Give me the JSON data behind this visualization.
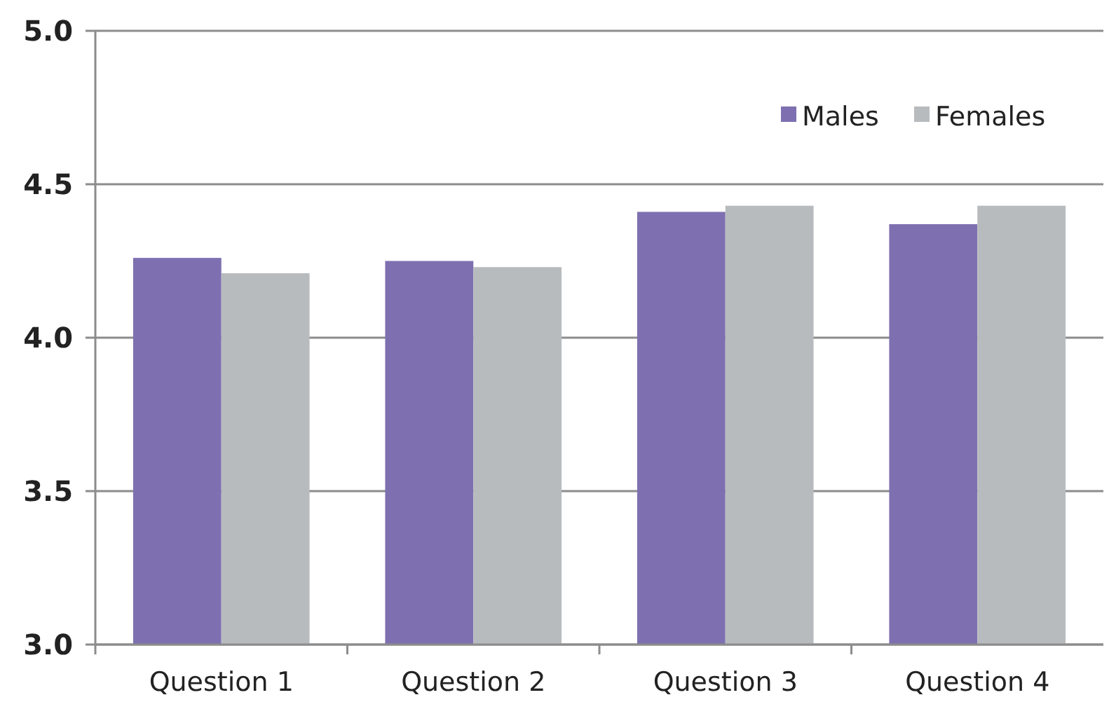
{
  "chart_data": {
    "type": "bar",
    "categories": [
      "Question 1",
      "Question 2",
      "Question 3",
      "Question 4"
    ],
    "series": [
      {
        "name": "Males",
        "color": "#7e70b0",
        "values": [
          4.26,
          4.25,
          4.41,
          4.37
        ]
      },
      {
        "name": "Females",
        "color": "#b8bbbe",
        "values": [
          4.21,
          4.23,
          4.43,
          4.43
        ]
      }
    ],
    "ylim": [
      3,
      5
    ],
    "yticks": [
      {
        "value": 3,
        "label": "3.0"
      },
      {
        "value": 3.5,
        "label": "3.5"
      },
      {
        "value": 4,
        "label": "4.0"
      },
      {
        "value": 4.5,
        "label": "4.5"
      },
      {
        "value": 5,
        "label": "5.0"
      }
    ],
    "grid": "y",
    "legend": "top right"
  }
}
